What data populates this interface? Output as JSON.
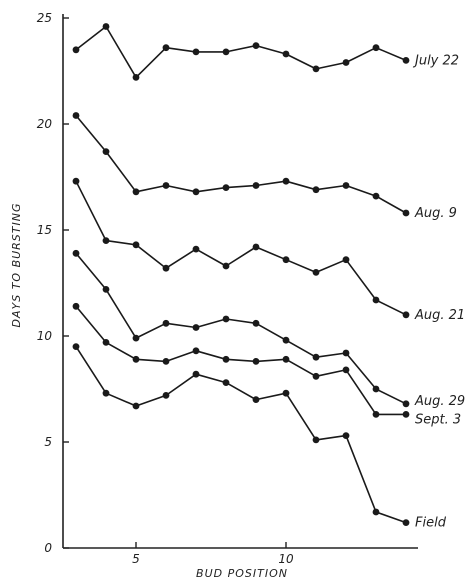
{
  "chart_data": {
    "type": "line",
    "title": "",
    "xlabel": "BUD POSITION",
    "ylabel": "DAYS   TO   BURSTING",
    "xlim": [
      2.5,
      14.2
    ],
    "ylim": [
      0,
      25
    ],
    "x_ticks": [
      5,
      10
    ],
    "y_ticks": [
      0,
      5,
      10,
      15,
      20,
      25
    ],
    "grid": false,
    "legend": "inline labels at right end of each line",
    "x": [
      3,
      4,
      5,
      6,
      7,
      8,
      9,
      10,
      11,
      12,
      13,
      14
    ],
    "series": [
      {
        "name": "July 22",
        "values": [
          23.5,
          24.6,
          22.2,
          23.6,
          23.4,
          23.4,
          23.7,
          23.3,
          22.6,
          22.9,
          23.6,
          23.0
        ]
      },
      {
        "name": "Aug. 9",
        "values": [
          20.4,
          18.7,
          16.8,
          17.1,
          16.8,
          17.0,
          17.1,
          17.3,
          16.9,
          17.1,
          16.6,
          15.8
        ]
      },
      {
        "name": "Aug. 21",
        "values": [
          17.3,
          14.5,
          14.3,
          13.2,
          14.1,
          13.3,
          14.2,
          13.6,
          13.0,
          13.6,
          11.7,
          11.0
        ]
      },
      {
        "name": "Aug. 29",
        "values": [
          13.9,
          12.2,
          9.9,
          10.6,
          10.4,
          10.8,
          10.6,
          9.8,
          9.0,
          9.2,
          7.5,
          6.8
        ]
      },
      {
        "name": "Sept. 3",
        "values": [
          11.4,
          9.7,
          8.9,
          8.8,
          9.3,
          8.9,
          8.8,
          8.9,
          8.1,
          8.4,
          6.3,
          6.3
        ]
      },
      {
        "name": "Field",
        "values": [
          9.5,
          7.3,
          6.7,
          7.2,
          8.2,
          7.8,
          7.0,
          7.3,
          5.1,
          5.3,
          1.7,
          1.2
        ]
      }
    ]
  }
}
